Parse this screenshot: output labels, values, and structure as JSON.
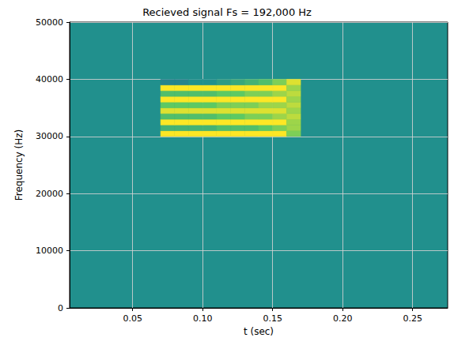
{
  "chart_data": {
    "type": "heatmap",
    "title": "Recieved signal Fs = 192,000 Hz",
    "x_label": "t (sec)",
    "y_label": "Frequency (Hz)",
    "xlim": [
      0.005,
      0.275
    ],
    "xticks": [
      0.05,
      {
        "value": 0.1,
        "label": "0.10"
      },
      0.15,
      {
        "value": 0.2,
        "label": "0.20"
      },
      0.25
    ],
    "ylim": [
      0,
      50000
    ],
    "yticks": [
      0,
      10000,
      20000,
      30000,
      40000,
      50000
    ],
    "grid": true,
    "x_bins": [
      0.07,
      0.08,
      0.09,
      0.1,
      0.11,
      0.12,
      0.13,
      0.14,
      0.15,
      0.16,
      0.17
    ],
    "y_bins": [
      30000,
      31000,
      32000,
      33000,
      34000,
      35000,
      36000,
      37000,
      38000,
      39000,
      40000
    ],
    "cells": [
      [
        1,
        1,
        1,
        1,
        1,
        1,
        1,
        1,
        1,
        0.8
      ],
      [
        0.65,
        0.65,
        0.65,
        0.65,
        0.7,
        0.7,
        0.7,
        0.75,
        0.8,
        0.85
      ],
      [
        1,
        1,
        1,
        1,
        1,
        1,
        1,
        1,
        1,
        0.85
      ],
      [
        0.7,
        0.7,
        0.7,
        0.7,
        0.75,
        0.75,
        0.8,
        0.8,
        0.85,
        0.9
      ],
      [
        0.95,
        0.95,
        0.95,
        0.95,
        0.95,
        0.95,
        0.95,
        0.95,
        0.95,
        0.85
      ],
      [
        0.75,
        0.75,
        0.75,
        0.75,
        0.8,
        0.8,
        0.8,
        0.85,
        0.85,
        0.9
      ],
      [
        1,
        1,
        1,
        1,
        1,
        1,
        1,
        1,
        1,
        0.85
      ],
      [
        0.7,
        0.7,
        0.7,
        0.7,
        0.75,
        0.75,
        0.8,
        0.8,
        0.85,
        0.9
      ],
      [
        1,
        1,
        1,
        1,
        1,
        1,
        1,
        1,
        1,
        0.85
      ],
      [
        0.45,
        0.45,
        0.5,
        0.5,
        0.55,
        0.6,
        0.65,
        0.7,
        0.8,
        0.95
      ]
    ],
    "zlim": [
      0,
      1
    ]
  }
}
